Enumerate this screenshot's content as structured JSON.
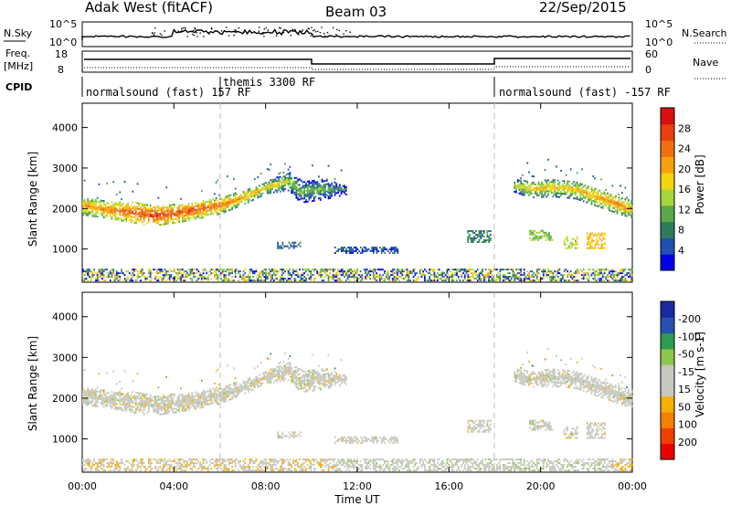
{
  "header": {
    "station": "Adak West (fitACF)",
    "beam": "Beam 03",
    "date": "22/Sep/2015"
  },
  "strips": {
    "nsky_label": "N.Sky",
    "nsearch_label": "N.Search",
    "nsky_ticks": [
      "10^5",
      "10^0"
    ],
    "nsearch_ticks": [
      "10^5",
      "10^0"
    ],
    "freq_label_1": "Freq.",
    "freq_label_2": "[MHz]",
    "freq_ticks": [
      "18",
      "8"
    ],
    "nave_label": "Nave",
    "nave_ticks": [
      "60",
      "0"
    ],
    "cpid_label": "CPID",
    "modes": [
      "normalsound (fast) 157 RF",
      "themis 3300 RF",
      "normalsound (fast) -157 RF"
    ]
  },
  "axes": {
    "ylabel": "Slant Range [km]",
    "xlabel": "Time UT",
    "y_ticks": [
      1000,
      2000,
      3000,
      4000
    ],
    "x_ticks": [
      "00:00",
      "04:00",
      "08:00",
      "12:00",
      "16:00",
      "20:00",
      "00:00"
    ]
  },
  "colors": {
    "power": [
      "#0000e8",
      "#1f4fb0",
      "#2e7d5a",
      "#59a84a",
      "#a5d63a",
      "#f5d40c",
      "#f5a20c",
      "#f07010",
      "#e8400e",
      "#d81010"
    ],
    "velocity": [
      "#e80000",
      "#f04000",
      "#f58000",
      "#f5b000",
      "#c8c8c0",
      "#c8c8c0",
      "#8cc84a",
      "#2e9a52",
      "#2850b0",
      "#1a2aa0"
    ],
    "ground_scatter": "#c8c8c0"
  },
  "chart_data": [
    {
      "type": "heatmap",
      "title": "Power",
      "colorbar_label": "Power [dB]",
      "colorbar_ticks": [
        4,
        8,
        12,
        16,
        20,
        24,
        28
      ],
      "clim": [
        0,
        30
      ],
      "xlabel": "Time UT",
      "ylabel": "Slant Range [km]",
      "xlim": [
        0,
        24
      ],
      "ylim": [
        180,
        4600
      ],
      "main_band": [
        {
          "t": 0.0,
          "range": 2050,
          "width": 450,
          "db": 20
        },
        {
          "t": 1.0,
          "range": 1950,
          "width": 400,
          "db": 22
        },
        {
          "t": 2.0,
          "range": 1900,
          "width": 500,
          "db": 24
        },
        {
          "t": 3.0,
          "range": 1800,
          "width": 500,
          "db": 26
        },
        {
          "t": 4.0,
          "range": 1850,
          "width": 450,
          "db": 25
        },
        {
          "t": 5.0,
          "range": 1950,
          "width": 450,
          "db": 24
        },
        {
          "t": 6.0,
          "range": 2050,
          "width": 400,
          "db": 23
        },
        {
          "t": 7.0,
          "range": 2250,
          "width": 350,
          "db": 20
        },
        {
          "t": 8.0,
          "range": 2500,
          "width": 300,
          "db": 18
        },
        {
          "t": 9.0,
          "range": 2650,
          "width": 450,
          "db": 15
        },
        {
          "t": 9.5,
          "range": 2400,
          "width": 550,
          "db": 12
        },
        {
          "t": 10.5,
          "range": 2450,
          "width": 500,
          "db": 12
        },
        {
          "t": 11.5,
          "range": 2450,
          "width": 250,
          "db": 8
        },
        {
          "t": 18.8,
          "range": 2550,
          "width": 300,
          "db": 14
        },
        {
          "t": 19.5,
          "range": 2450,
          "width": 400,
          "db": 18
        },
        {
          "t": 20.5,
          "range": 2500,
          "width": 450,
          "db": 18
        },
        {
          "t": 21.5,
          "range": 2450,
          "width": 450,
          "db": 18
        },
        {
          "t": 22.5,
          "range": 2250,
          "width": 450,
          "db": 20
        },
        {
          "t": 23.5,
          "range": 2050,
          "width": 450,
          "db": 21
        },
        {
          "t": 24.0,
          "range": 1950,
          "width": 400,
          "db": 20
        }
      ]
    },
    {
      "type": "heatmap",
      "title": "Velocity",
      "colorbar_label": "Velocity [m s-1]",
      "colorbar_ticks": [
        200,
        100,
        50,
        15,
        -15,
        -50,
        -100,
        -200
      ],
      "clim": [
        -250,
        250
      ],
      "xlabel": "Time UT",
      "ylabel": "Slant Range [km]",
      "xlim": [
        0,
        24
      ],
      "ylim": [
        180,
        4600
      ]
    }
  ]
}
